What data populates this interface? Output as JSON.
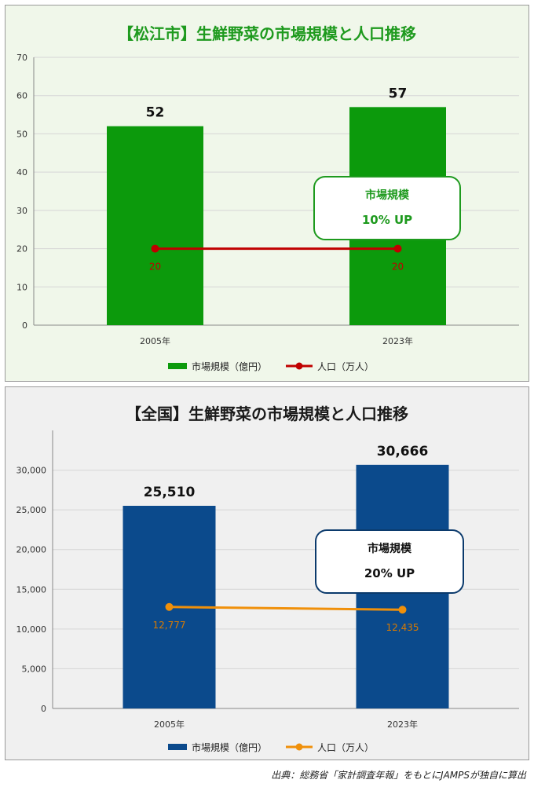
{
  "charts": [
    {
      "id": "matsue",
      "title": "【松江市】生鮮野菜の市場規模と人口推移",
      "title_color": "#1e9a1e",
      "bar_color": "#0c9a0c",
      "line_color": "#c00000",
      "callout": {
        "label": "市場規模",
        "value": "10% UP",
        "text_color": "#1e9a1e",
        "border_color": "#1e9a1e"
      }
    },
    {
      "id": "national",
      "title": "【全国】生鮮野菜の市場規模と人口推移",
      "title_color": "#1a1a1a",
      "bar_color": "#0b4a8c",
      "line_color": "#f0900a",
      "callout": {
        "label": "市場規模",
        "value": "20% UP",
        "text_color": "#111111",
        "border_color": "#0b3a6c"
      }
    }
  ],
  "chart_data": [
    {
      "type": "bar",
      "title": "【松江市】生鮮野菜の市場規模と人口推移",
      "categories": [
        "2005年",
        "2023年"
      ],
      "series": [
        {
          "name": "市場規模（億円）",
          "kind": "bar",
          "values": [
            52,
            57
          ],
          "labels": [
            "52",
            "57"
          ]
        },
        {
          "name": "人口（万人）",
          "kind": "line",
          "values": [
            20,
            20
          ],
          "labels": [
            "20",
            "20"
          ]
        }
      ],
      "ylim": [
        0,
        70
      ],
      "yticks": [
        0,
        10,
        20,
        30,
        40,
        50,
        60,
        70
      ],
      "ytick_labels": [
        "0",
        "10",
        "20",
        "30",
        "40",
        "50",
        "60",
        "70"
      ],
      "grid": true,
      "legend": "bottom"
    },
    {
      "type": "bar",
      "title": "【全国】生鮮野菜の市場規模と人口推移",
      "categories": [
        "2005年",
        "2023年"
      ],
      "series": [
        {
          "name": "市場規模（億円）",
          "kind": "bar",
          "values": [
            25510,
            30666
          ],
          "labels": [
            "25,510",
            "30,666"
          ]
        },
        {
          "name": "人口（万人）",
          "kind": "line",
          "values": [
            12777,
            12435
          ],
          "labels": [
            "12,777",
            "12,435"
          ]
        }
      ],
      "ylim": [
        0,
        35000
      ],
      "yticks": [
        0,
        5000,
        10000,
        15000,
        20000,
        25000,
        30000
      ],
      "ytick_labels": [
        "0",
        "5,000",
        "10,000",
        "15,000",
        "20,000",
        "25,000",
        "30,000"
      ],
      "grid": true,
      "legend": "bottom"
    }
  ],
  "source": "出典：総務省「家計調査年報」をもとにJAMPSが独自に算出"
}
